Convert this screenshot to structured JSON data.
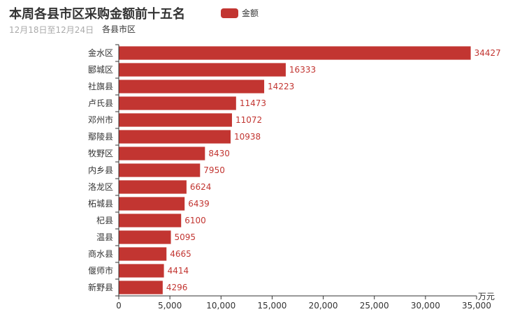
{
  "header": {
    "title": "本周各县市区采购金额前十五名",
    "subtitle": "12月18日至12月24日"
  },
  "legend": {
    "label": "金额"
  },
  "chart_data": {
    "type": "bar",
    "orientation": "horizontal",
    "title": "本周各县市区采购金额前十五名",
    "subtitle": "12月18日至12月24日",
    "ylabel": "各县市区",
    "xlabel": "万元",
    "xlim": [
      0,
      35000
    ],
    "xticks": [
      "0",
      "5,000",
      "10,000",
      "15,000",
      "20,000",
      "25,000",
      "30,000",
      "35,000"
    ],
    "xtick_values": [
      0,
      5000,
      10000,
      15000,
      20000,
      25000,
      30000,
      35000
    ],
    "categories": [
      "金水区",
      "郾城区",
      "社旗县",
      "卢氏县",
      "邓州市",
      "鄢陵县",
      "牧野区",
      "内乡县",
      "洛龙区",
      "柘城县",
      "杞县",
      "温县",
      "商水县",
      "偃师市",
      "新野县"
    ],
    "series": [
      {
        "name": "金额",
        "values": [
          34427,
          16333,
          14223,
          11473,
          11072,
          10938,
          8430,
          7950,
          6624,
          6439,
          6100,
          5095,
          4665,
          4414,
          4296
        ]
      }
    ],
    "data_labels": [
      "34427",
      "16333",
      "14223",
      "11473",
      "11072",
      "10938",
      "8430",
      "7950",
      "6624",
      "6439",
      "6100",
      "5095",
      "4665",
      "4414",
      "4296"
    ],
    "color": "#c23531",
    "grid": false,
    "legend_position": "top-center"
  }
}
